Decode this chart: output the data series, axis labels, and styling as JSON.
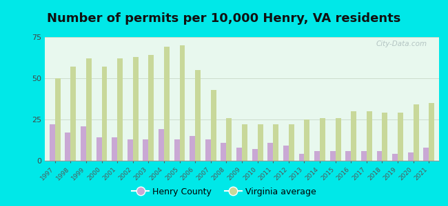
{
  "title": "Number of permits per 10,000 Henry, VA residents",
  "years": [
    1997,
    1998,
    1999,
    2000,
    2001,
    2002,
    2003,
    2004,
    2005,
    2006,
    2007,
    2008,
    2009,
    2010,
    2011,
    2012,
    2013,
    2014,
    2015,
    2016,
    2017,
    2018,
    2019,
    2020,
    2021
  ],
  "henry_county": [
    22,
    17,
    21,
    14,
    14,
    13,
    13,
    19,
    13,
    15,
    13,
    11,
    8,
    7,
    11,
    9,
    4,
    6,
    6,
    6,
    6,
    6,
    4,
    5,
    8
  ],
  "virginia_avg": [
    50,
    57,
    62,
    57,
    62,
    63,
    64,
    69,
    70,
    55,
    43,
    26,
    22,
    22,
    22,
    22,
    25,
    26,
    26,
    30,
    30,
    29,
    29,
    34,
    35
  ],
  "henry_color": "#c9a8d4",
  "virginia_color": "#c8d89a",
  "plot_bg_top": "#e8f8ee",
  "plot_bg_bottom": "#d0f0e8",
  "ylim": [
    0,
    75
  ],
  "yticks": [
    0,
    25,
    50,
    75
  ],
  "legend_henry": "Henry County",
  "legend_virginia": "Virginia average",
  "title_fontsize": 13,
  "bar_width": 0.35,
  "outer_bg": "#00e8e8",
  "grid_color": "#ccddcc",
  "watermark": "City-Data.com",
  "watermark_color": "#aabbbb"
}
